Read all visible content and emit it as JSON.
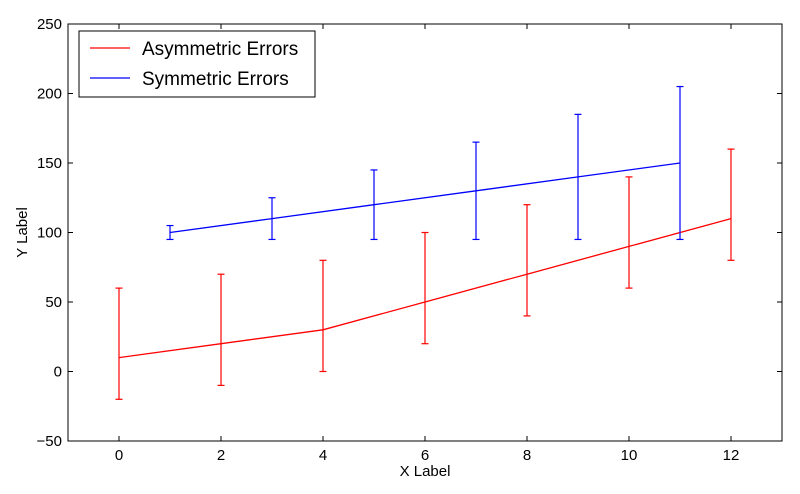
{
  "chart_data": {
    "type": "line",
    "xlabel": "X Label",
    "ylabel": "Y Label",
    "xlim": [
      -1,
      13
    ],
    "ylim": [
      -50,
      250
    ],
    "x_ticks": [
      0,
      2,
      4,
      6,
      8,
      10,
      12
    ],
    "y_ticks": [
      -50,
      0,
      50,
      100,
      150,
      200,
      250
    ],
    "x_tick_labels": [
      "0",
      "2",
      "4",
      "6",
      "8",
      "10",
      "12"
    ],
    "y_tick_labels": [
      "−50",
      "0",
      "50",
      "100",
      "150",
      "200",
      "250"
    ],
    "grid": false,
    "legend_position": "top-left",
    "series": [
      {
        "name": "Asymmetric Errors",
        "color": "#ff0000",
        "x": [
          0,
          2,
          4,
          6,
          8,
          10,
          12
        ],
        "y": [
          10,
          20,
          30,
          50,
          70,
          90,
          110
        ],
        "err_lower": [
          30,
          30,
          30,
          30,
          30,
          30,
          30
        ],
        "err_upper": [
          50,
          50,
          50,
          50,
          50,
          50,
          50
        ]
      },
      {
        "name": "Symmetric Errors",
        "color": "#0000ff",
        "x": [
          1,
          3,
          5,
          7,
          9,
          11
        ],
        "y": [
          100,
          110,
          120,
          130,
          140,
          150
        ],
        "err_lower": [
          5,
          15,
          25,
          35,
          45,
          55
        ],
        "err_upper": [
          5,
          15,
          25,
          35,
          45,
          55
        ]
      }
    ]
  }
}
